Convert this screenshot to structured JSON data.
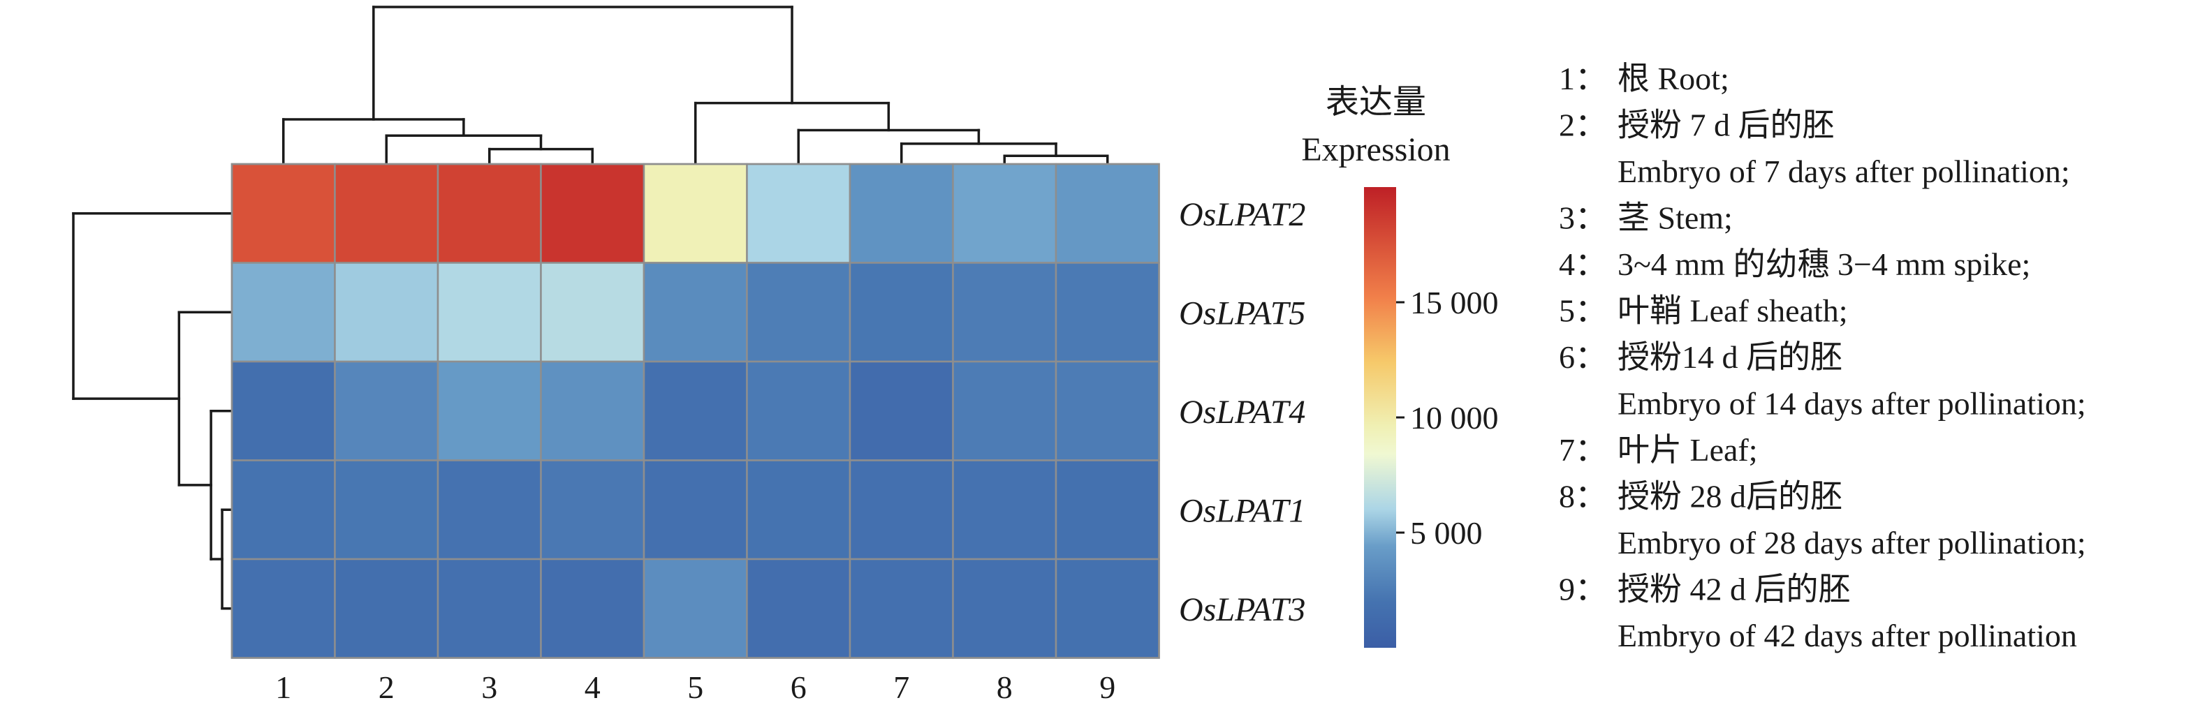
{
  "chart_data": {
    "type": "heatmap",
    "rows": [
      "OsLPAT2",
      "OsLPAT5",
      "OsLPAT4",
      "OsLPAT1",
      "OsLPAT3"
    ],
    "columns": [
      "1",
      "2",
      "3",
      "4",
      "5",
      "6",
      "7",
      "8",
      "9"
    ],
    "values": [
      [
        17500,
        18000,
        18300,
        19000,
        9500,
        6000,
        3800,
        4600,
        4100
      ],
      [
        4900,
        5700,
        6200,
        6400,
        3400,
        2600,
        2200,
        2500,
        2400
      ],
      [
        1600,
        3100,
        4200,
        3700,
        1700,
        2400,
        1300,
        2500,
        2500
      ],
      [
        2000,
        2200,
        1900,
        2300,
        1700,
        2000,
        1700,
        1900,
        1800
      ],
      [
        1700,
        1600,
        1700,
        1500,
        3500,
        1500,
        1700,
        1700,
        1800
      ]
    ],
    "colorbar": {
      "title_cn": "表达量",
      "title_en": "Expression",
      "range": [
        0,
        20000
      ],
      "ticks": [
        5000,
        10000,
        15000
      ],
      "tick_labels": [
        "5 000",
        "10 000",
        "15 000"
      ]
    },
    "col_dendrogram": {
      "leaf_order": [
        "1",
        "2",
        "3",
        "4",
        "5",
        "6",
        "7",
        "8",
        "9"
      ],
      "merges": [
        {
          "left": "3",
          "right": "4",
          "height": 1
        },
        {
          "left": "2",
          "right": "3+4",
          "height": 2
        },
        {
          "left": "1",
          "right": "2+3+4",
          "height": 3.2
        },
        {
          "left": "8",
          "right": "9",
          "height": 0.5
        },
        {
          "left": "7",
          "right": "8+9",
          "height": 1.4
        },
        {
          "left": "6",
          "right": "7+8+9",
          "height": 2.4
        },
        {
          "left": "5",
          "right": "6+7+8+9",
          "height": 4.4
        },
        {
          "left": "1-4",
          "right": "5-9",
          "height": 11.5
        }
      ]
    },
    "row_dendrogram": {
      "leaf_order": [
        "OsLPAT2",
        "OsLPAT5",
        "OsLPAT4",
        "OsLPAT1",
        "OsLPAT3"
      ],
      "merges": [
        {
          "left": "OsLPAT1",
          "right": "OsLPAT3",
          "height": 0.6
        },
        {
          "left": "OsLPAT4",
          "right": "OsLPAT1+OsLPAT3",
          "height": 1.4
        },
        {
          "left": "OsLPAT5",
          "right": "OsLPAT4+OsLPAT1+OsLPAT3",
          "height": 3.7
        },
        {
          "left": "OsLPAT2",
          "right": "rest",
          "height": 11.3
        }
      ]
    }
  },
  "legend": [
    {
      "num": "1：",
      "lines": [
        "根 Root;"
      ]
    },
    {
      "num": "2：",
      "lines": [
        "授粉 7 d 后的胚",
        "Embryo of 7 days after pollination;"
      ]
    },
    {
      "num": "3：",
      "lines": [
        "茎 Stem;"
      ]
    },
    {
      "num": "4：",
      "lines": [
        "3~4 mm 的幼穗 3−4 mm spike;"
      ]
    },
    {
      "num": "5：",
      "lines": [
        "叶鞘 Leaf sheath;"
      ]
    },
    {
      "num": "6：",
      "lines": [
        "授粉14 d 后的胚",
        "Embryo of 14 days after pollination;"
      ]
    },
    {
      "num": "7：",
      "lines": [
        "叶片 Leaf;"
      ]
    },
    {
      "num": "8：",
      "lines": [
        "授粉 28 d后的胚",
        "Embryo of 28 days after pollination;"
      ]
    },
    {
      "num": "9：",
      "lines": [
        "授粉 42 d 后的胚",
        "Embryo of 42 days after pollination"
      ]
    }
  ]
}
